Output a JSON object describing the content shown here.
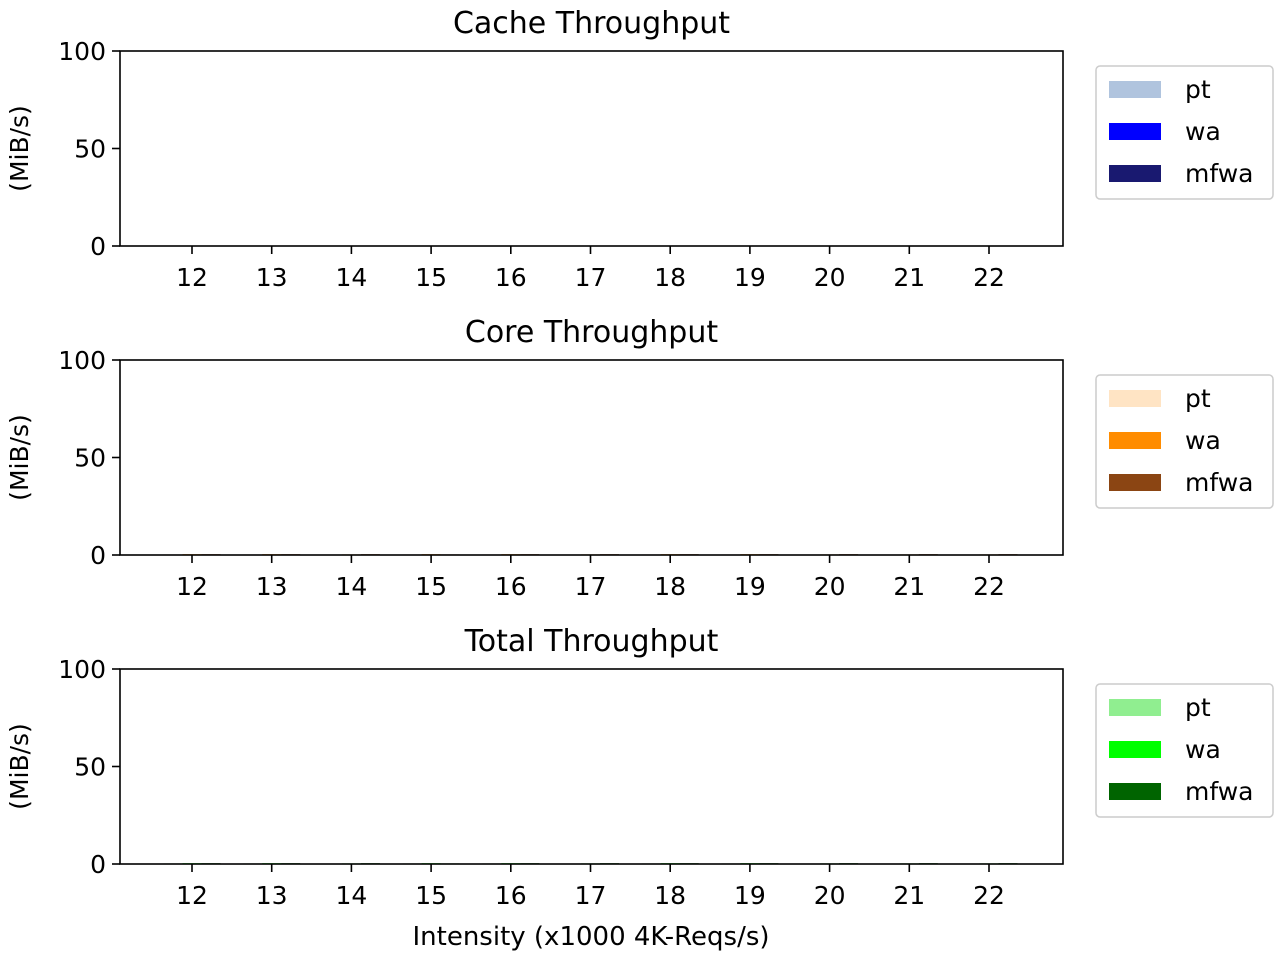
{
  "figure": {
    "xlabel": "Intensity (x1000 4K-Reqs/s)"
  },
  "chart_data": [
    {
      "type": "bar",
      "title": "Cache Throughput",
      "ylabel": "(MiB/s)",
      "ylim": [
        0,
        100
      ],
      "yticks": [
        0,
        50,
        100
      ],
      "legend_position": "right",
      "categories": [
        "12",
        "13",
        "14",
        "15",
        "16",
        "17",
        "18",
        "19",
        "20",
        "21",
        "22"
      ],
      "series": [
        {
          "name": "pt",
          "color": "#b0c4de",
          "values": [
            0,
            0,
            0,
            0,
            0,
            0,
            0,
            0,
            0,
            0,
            0
          ]
        },
        {
          "name": "wa",
          "color": "#0000ff",
          "values": [
            0,
            0,
            0,
            0,
            0,
            0,
            0,
            0,
            0,
            0,
            0
          ]
        },
        {
          "name": "mfwa",
          "color": "#191970",
          "values": [
            0,
            0,
            0,
            0,
            0,
            0,
            0,
            0,
            0,
            0,
            0
          ]
        }
      ]
    },
    {
      "type": "bar",
      "title": "Core Throughput",
      "ylabel": "(MiB/s)",
      "ylim": [
        0,
        100
      ],
      "yticks": [
        0,
        50,
        100
      ],
      "legend_position": "right",
      "categories": [
        "12",
        "13",
        "14",
        "15",
        "16",
        "17",
        "18",
        "19",
        "20",
        "21",
        "22"
      ],
      "series": [
        {
          "name": "pt",
          "color": "#ffe4c4",
          "values": [
            0.3,
            0.3,
            0.2,
            0.3,
            0.3,
            0.2,
            0.3,
            0.3,
            0.2,
            0.2,
            0.2
          ]
        },
        {
          "name": "wa",
          "color": "#ff8c00",
          "values": [
            0.4,
            0.4,
            0.3,
            0.4,
            0.4,
            0.3,
            0.4,
            0.4,
            0.3,
            0.3,
            0.3
          ]
        },
        {
          "name": "mfwa",
          "color": "#8b4513",
          "values": [
            0.4,
            0.4,
            0.4,
            0.3,
            0.4,
            0.4,
            0.4,
            0.4,
            0.4,
            0.4,
            0.4
          ]
        }
      ]
    },
    {
      "type": "bar",
      "title": "Total Throughput",
      "ylabel": "(MiB/s)",
      "ylim": [
        0,
        100
      ],
      "yticks": [
        0,
        50,
        100
      ],
      "legend_position": "right",
      "categories": [
        "12",
        "13",
        "14",
        "15",
        "16",
        "17",
        "18",
        "19",
        "20",
        "21",
        "22"
      ],
      "series": [
        {
          "name": "pt",
          "color": "#90ee90",
          "values": [
            0.3,
            0.3,
            0.2,
            0.3,
            0.3,
            0.2,
            0.3,
            0.3,
            0.2,
            0.2,
            0.2
          ]
        },
        {
          "name": "wa",
          "color": "#00ff00",
          "values": [
            0.4,
            0.4,
            0.3,
            0.4,
            0.4,
            0.3,
            0.4,
            0.4,
            0.3,
            0.3,
            0.3
          ]
        },
        {
          "name": "mfwa",
          "color": "#006400",
          "values": [
            0.4,
            0.4,
            0.4,
            0.3,
            0.4,
            0.4,
            0.4,
            0.4,
            0.4,
            0.4,
            0.4
          ]
        }
      ]
    }
  ]
}
